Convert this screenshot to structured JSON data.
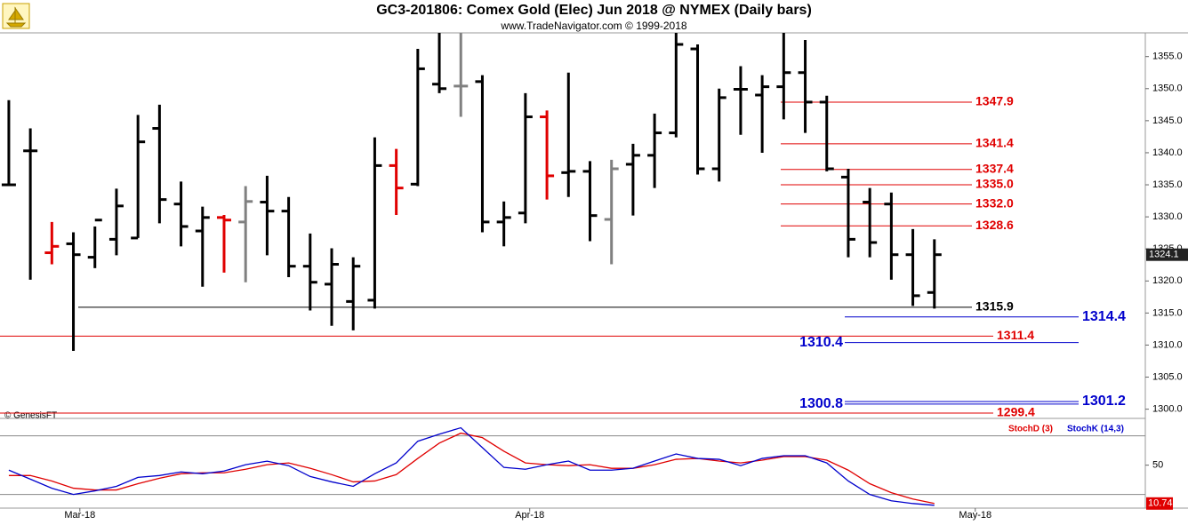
{
  "chart_data": {
    "type": "ohlc",
    "title": "GC3-201806:  Comex Gold (Elec) Jun 2018 @ NYMEX  (Daily bars)",
    "subtitle": "www.TradeNavigator.com © 1999-2018",
    "copyright": "© GenesisFT",
    "xlim": [
      -0.41,
      52.8
    ],
    "xticks": [
      {
        "value": 3.3,
        "label": "Mar-18"
      },
      {
        "value": 24.2,
        "label": "Apr-18"
      },
      {
        "value": 44.9,
        "label": "May-18"
      }
    ],
    "ylim": [
      1298.7,
      1358.7
    ],
    "yticks": [
      {
        "value": 1300,
        "label": "1300.0"
      },
      {
        "value": 1305,
        "label": "1305.0"
      },
      {
        "value": 1310,
        "label": "1310.0"
      },
      {
        "value": 1315,
        "label": "1315.0"
      },
      {
        "value": 1320,
        "label": "1320.0"
      },
      {
        "value": 1325,
        "label": "1325.0"
      },
      {
        "value": 1330,
        "label": "1330.0"
      },
      {
        "value": 1335,
        "label": "1335.0"
      },
      {
        "value": 1340,
        "label": "1340.0"
      },
      {
        "value": 1345,
        "label": "1345.0"
      },
      {
        "value": 1350,
        "label": "1350.0"
      },
      {
        "value": 1355,
        "label": "1355.0"
      }
    ],
    "ohlc": {
      "open": [
        1335.0,
        1340.3,
        1324.4,
        1325.8,
        1323.7,
        1326.5,
        1326.7,
        1343.8,
        1332.0,
        1327.8,
        1329.9,
        1329.2,
        1332.3,
        1330.9,
        1322.3,
        1319.5,
        1316.8,
        1317.0,
        1338.0,
        1335.1,
        1350.7,
        1350.4,
        1351.1,
        1329.2,
        1330.6,
        1345.6,
        1336.9,
        1337.1,
        1329.6,
        1338.2,
        1339.6,
        1343.1,
        1356.2,
        1337.5,
        1349.9,
        1349.0,
        1350.3,
        1352.5,
        1347.9,
        1336.2,
        1332.3,
        1332.0,
        1324.1,
        1318.2
      ],
      "high": [
        1348.2,
        1343.8,
        1329.2,
        1327.6,
        1328.5,
        1334.4,
        1345.9,
        1347.5,
        1335.5,
        1331.6,
        1330.3,
        1334.8,
        1336.4,
        1333.1,
        1327.4,
        1325.1,
        1323.7,
        1342.4,
        1340.6,
        1356.2,
        1358.7,
        1358.7,
        1352.1,
        1332.4,
        1349.3,
        1346.6,
        1352.5,
        1338.7,
        1338.9,
        1341.4,
        1346.1,
        1358.7,
        1356.9,
        1350.0,
        1353.5,
        1352.1,
        1358.7,
        1357.6,
        1348.9,
        1337.5,
        1334.5,
        1333.8,
        1328.1,
        1326.5
      ],
      "low": [
        1334.8,
        1320.2,
        1322.6,
        1309.1,
        1322.0,
        1324.0,
        1326.7,
        1329.0,
        1325.4,
        1319.1,
        1321.3,
        1319.8,
        1324.0,
        1320.6,
        1315.4,
        1313.0,
        1312.3,
        1315.7,
        1330.3,
        1334.8,
        1349.3,
        1345.6,
        1327.6,
        1325.4,
        1329.0,
        1332.7,
        1333.1,
        1326.2,
        1322.6,
        1330.2,
        1334.5,
        1342.4,
        1336.6,
        1335.5,
        1342.8,
        1340.0,
        1345.2,
        1343.1,
        1337.1,
        1323.7,
        1323.7,
        1320.2,
        1316.1,
        1315.7
      ],
      "close": [
        1335.0,
        1340.3,
        1325.4,
        1324.1,
        1329.5,
        1331.7,
        1341.7,
        1332.7,
        1328.5,
        1329.9,
        1329.5,
        1332.4,
        1330.9,
        1322.3,
        1319.8,
        1322.6,
        1322.3,
        1338.0,
        1334.5,
        1353.1,
        1350.0,
        1350.4,
        1329.2,
        1329.9,
        1345.6,
        1336.4,
        1337.1,
        1330.2,
        1337.5,
        1339.6,
        1343.1,
        1356.9,
        1337.5,
        1348.6,
        1349.9,
        1350.3,
        1352.5,
        1347.9,
        1337.5,
        1326.5,
        1326.0,
        1324.1,
        1317.7,
        1324.1
      ],
      "colors": [
        "#000000",
        "#000000",
        "#e00000",
        "#000000",
        "#000000",
        "#000000",
        "#000000",
        "#000000",
        "#000000",
        "#000000",
        "#e00000",
        "#808080",
        "#000000",
        "#000000",
        "#000000",
        "#000000",
        "#000000",
        "#000000",
        "#e00000",
        "#000000",
        "#000000",
        "#808080",
        "#000000",
        "#000000",
        "#000000",
        "#e00000",
        "#000000",
        "#000000",
        "#808080",
        "#000000",
        "#000000",
        "#000000",
        "#000000",
        "#000000",
        "#000000",
        "#000000",
        "#000000",
        "#000000",
        "#000000",
        "#000000",
        "#000000",
        "#000000",
        "#000000",
        "#000000"
      ]
    },
    "last_price": 1324.1,
    "levels": [
      {
        "value": 1347.9,
        "label": "1347.9",
        "color": "#e00000"
      },
      {
        "value": 1341.4,
        "label": "1341.4",
        "color": "#e00000"
      },
      {
        "value": 1337.4,
        "label": "1337.4",
        "color": "#e00000"
      },
      {
        "value": 1335.0,
        "label": "1335.0",
        "color": "#e00000"
      },
      {
        "value": 1332.0,
        "label": "1332.0",
        "color": "#e00000"
      },
      {
        "value": 1328.6,
        "label": "1328.6",
        "color": "#e00000"
      },
      {
        "value": 1315.9,
        "label": "1315.9",
        "color": "#000000"
      },
      {
        "value": 1314.4,
        "label": "1314.4",
        "color": "#0000cc"
      },
      {
        "value": 1311.4,
        "label": "1311.4",
        "color": "#e00000"
      },
      {
        "value": 1310.4,
        "label": "1310.4",
        "color": "#0000cc"
      },
      {
        "value": 1301.2,
        "label": "1301.2",
        "color": "#0000cc"
      },
      {
        "value": 1300.8,
        "label": "1300.8",
        "color": "#0000cc"
      },
      {
        "value": 1299.4,
        "label": "1299.4",
        "color": "#e00000"
      }
    ],
    "indicator": {
      "type": "line",
      "ylim": [
        6,
        97
      ],
      "yticks": [
        50
      ],
      "bands": [
        20,
        80
      ],
      "last_value": 10.74,
      "series": [
        {
          "name": "StochD (3)",
          "color": "#e00000",
          "values": [
            39.4,
            39.4,
            33.8,
            26.4,
            24.6,
            24.6,
            31,
            36.6,
            41.2,
            42.2,
            42.2,
            45.8,
            50.5,
            52.3,
            46.8,
            40.3,
            32.9,
            33.8,
            40.3,
            56.9,
            72.6,
            82.8,
            78.2,
            64.3,
            52.3,
            50.5,
            49.5,
            50.5,
            46.8,
            46.8,
            50.5,
            56,
            56.9,
            54.2,
            52.3,
            55.1,
            58.8,
            58.8,
            55.1,
            44.9,
            31,
            21.8,
            15.3,
            10.74
          ]
        },
        {
          "name": "StochK (14,3)",
          "color": "#0000cc",
          "values": [
            44.9,
            35.7,
            26.4,
            20,
            23.7,
            28.3,
            37.5,
            39.4,
            43.1,
            41.2,
            44,
            50.5,
            54.1,
            49.5,
            38.4,
            32.9,
            28.3,
            41.2,
            52.3,
            74.5,
            81.8,
            88.3,
            68,
            47.7,
            45.8,
            50.5,
            54.2,
            44.9,
            44.9,
            46.8,
            54.2,
            61.5,
            56.9,
            56,
            49.5,
            56.9,
            59.7,
            59.7,
            52.3,
            33.8,
            20,
            13.5,
            10.7,
            8.9
          ]
        }
      ]
    }
  }
}
